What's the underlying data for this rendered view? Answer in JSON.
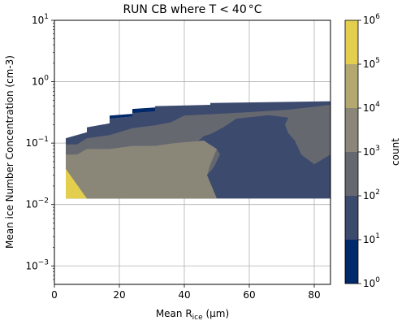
{
  "chart_data": {
    "type": "heatmap",
    "title_prefix": "RUN CB where T",
    "title_rel": "<",
    "title_value": "40",
    "title_unit": "°C",
    "xlabel_prefix": "Mean R",
    "xlabel_sub": "ice",
    "xlabel_suffix": " (μm)",
    "ylabel": "Mean ice Number Concentration (cm-3)",
    "colorbar_label": "count",
    "xlim": [
      0,
      85
    ],
    "ylim": [
      0.0005,
      10
    ],
    "yscale": "log",
    "grid": true,
    "x_ticks": [
      {
        "value": 0,
        "label": "0"
      },
      {
        "value": 20,
        "label": "20"
      },
      {
        "value": 40,
        "label": "40"
      },
      {
        "value": 60,
        "label": "60"
      },
      {
        "value": 80,
        "label": "80"
      }
    ],
    "y_ticks": [
      {
        "value": 0.001,
        "base": "10",
        "exp": "−3"
      },
      {
        "value": 0.01,
        "base": "10",
        "exp": "−2"
      },
      {
        "value": 0.1,
        "base": "10",
        "exp": "−1"
      },
      {
        "value": 1,
        "base": "10",
        "exp": "0"
      },
      {
        "value": 10,
        "base": "10",
        "exp": "1"
      }
    ],
    "colorbar_ticks": [
      {
        "value": 1,
        "base": "10",
        "exp": "0"
      },
      {
        "value": 10,
        "base": "10",
        "exp": "1"
      },
      {
        "value": 100,
        "base": "10",
        "exp": "2"
      },
      {
        "value": 1000,
        "base": "10",
        "exp": "3"
      },
      {
        "value": 10000,
        "base": "10",
        "exp": "4"
      },
      {
        "value": 100000,
        "base": "10",
        "exp": "5"
      },
      {
        "value": 1000000,
        "base": "10",
        "exp": "6"
      }
    ],
    "levels": [
      {
        "min": 1,
        "max": 10,
        "color": "#00296b"
      },
      {
        "min": 10,
        "max": 100,
        "color": "#3c4a6e"
      },
      {
        "min": 100,
        "max": 1000,
        "color": "#666870"
      },
      {
        "min": 1000,
        "max": 10000,
        "color": "#8a8779"
      },
      {
        "min": 10000,
        "max": 100000,
        "color": "#b3a870"
      },
      {
        "min": 100000,
        "max": 1000000,
        "color": "#e3ce4d"
      }
    ],
    "regions": [
      {
        "level": 1,
        "points": [
          [
            3.5,
            0.0125
          ],
          [
            3.5,
            0.12
          ],
          [
            10,
            0.15
          ],
          [
            10,
            0.18
          ],
          [
            17,
            0.21
          ],
          [
            17,
            0.25
          ],
          [
            24,
            0.27
          ],
          [
            24,
            0.33
          ],
          [
            31,
            0.37
          ],
          [
            31,
            0.4
          ],
          [
            48,
            0.42
          ],
          [
            48,
            0.45
          ],
          [
            85,
            0.48
          ],
          [
            85,
            0.0125
          ]
        ]
      },
      {
        "level": 0,
        "points": [
          [
            17,
            0.25
          ],
          [
            17,
            0.28
          ],
          [
            24,
            0.3
          ],
          [
            24,
            0.36
          ],
          [
            31,
            0.38
          ],
          [
            31,
            0.33
          ],
          [
            24,
            0.31
          ],
          [
            24,
            0.27
          ]
        ]
      },
      {
        "level": 2,
        "points": [
          [
            3.5,
            0.0125
          ],
          [
            3.5,
            0.095
          ],
          [
            7,
            0.095
          ],
          [
            10,
            0.12
          ],
          [
            17,
            0.135
          ],
          [
            24,
            0.175
          ],
          [
            31,
            0.195
          ],
          [
            36,
            0.22
          ],
          [
            40,
            0.28
          ],
          [
            60,
            0.32
          ],
          [
            72,
            0.35
          ],
          [
            78,
            0.38
          ],
          [
            85,
            0.42
          ],
          [
            85,
            0.065
          ],
          [
            80,
            0.045
          ],
          [
            76,
            0.065
          ],
          [
            74,
            0.11
          ],
          [
            72,
            0.145
          ],
          [
            71,
            0.2
          ],
          [
            72,
            0.26
          ],
          [
            66,
            0.285
          ],
          [
            56,
            0.25
          ],
          [
            52,
            0.18
          ],
          [
            48,
            0.14
          ],
          [
            46,
            0.13
          ],
          [
            44,
            0.105
          ],
          [
            50,
            0.08
          ],
          [
            51,
            0.065
          ],
          [
            49,
            0.04
          ],
          [
            47,
            0.03
          ],
          [
            50,
            0.0125
          ]
        ]
      },
      {
        "level": 3,
        "points": [
          [
            3.5,
            0.0125
          ],
          [
            3.5,
            0.065
          ],
          [
            7,
            0.065
          ],
          [
            10,
            0.08
          ],
          [
            17,
            0.08
          ],
          [
            24,
            0.09
          ],
          [
            31,
            0.09
          ],
          [
            37,
            0.1
          ],
          [
            46,
            0.11
          ],
          [
            50,
            0.08
          ],
          [
            48,
            0.045
          ],
          [
            47,
            0.03
          ],
          [
            50,
            0.0125
          ]
        ]
      },
      {
        "level": 5,
        "points": [
          [
            3.5,
            0.0125
          ],
          [
            3.5,
            0.038
          ],
          [
            10,
            0.0125
          ]
        ]
      }
    ]
  }
}
